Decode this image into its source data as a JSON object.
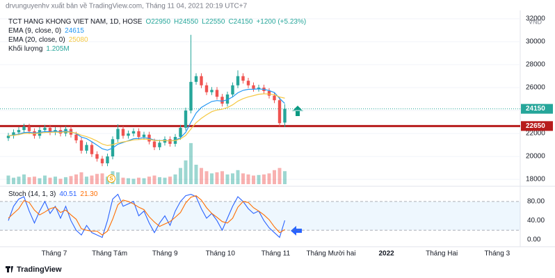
{
  "chart_data": [
    {
      "type": "candlestick",
      "header": "drvunguyenhv xuất bản về TradingView.com, Tháng 11 04, 2021 20:19 UTC+7",
      "title": "TCT HANG KHONG VIET NAM, 1D, HOSE",
      "ohlc_legend": [
        "O22950",
        "H24550",
        "L22550",
        "C24150",
        "+1200 (+5.23%)"
      ],
      "open": [
        21600,
        21800,
        22100,
        22300,
        22600,
        22200,
        21800,
        22300,
        22500,
        22100,
        22300,
        22000,
        22400,
        21900,
        21400,
        20500,
        21000,
        20200,
        19800,
        19400,
        20000,
        21500,
        22400,
        21800,
        22000,
        22200,
        21700,
        21900,
        21300,
        20800,
        21200,
        21500,
        21100,
        21700,
        22500,
        24000,
        26500,
        27000,
        26200,
        25600,
        25800,
        25200,
        24600,
        25400,
        26200,
        27000,
        26600,
        26200,
        25900,
        26000,
        25700,
        25300,
        24900,
        22950
      ],
      "high": [
        22050,
        22350,
        22550,
        22850,
        22850,
        22450,
        22550,
        22750,
        22750,
        22550,
        22550,
        22650,
        22650,
        22150,
        21650,
        21250,
        21250,
        20450,
        20050,
        20250,
        21750,
        22800,
        22650,
        22250,
        22450,
        22450,
        22150,
        22150,
        21550,
        21450,
        21750,
        21750,
        21950,
        22750,
        24250,
        30600,
        27250,
        27250,
        26450,
        26050,
        26050,
        25450,
        25650,
        26450,
        27500,
        27250,
        26850,
        26450,
        26250,
        26250,
        25950,
        25550,
        25150,
        24550
      ],
      "low": [
        21350,
        21550,
        21850,
        22050,
        21950,
        21550,
        21550,
        22050,
        21850,
        21850,
        21750,
        21750,
        21650,
        21150,
        20250,
        20250,
        19950,
        19550,
        19150,
        19150,
        19750,
        21250,
        21550,
        21550,
        21750,
        21450,
        21450,
        21050,
        20550,
        20550,
        20950,
        20850,
        20850,
        21450,
        22250,
        23750,
        26250,
        25950,
        25350,
        25350,
        24950,
        24350,
        24350,
        25150,
        25950,
        26350,
        25950,
        25650,
        25650,
        25450,
        25050,
        24650,
        22600,
        22550
      ],
      "close": [
        21800,
        22100,
        22300,
        22600,
        22200,
        21800,
        22300,
        22500,
        22100,
        22300,
        22000,
        22400,
        21900,
        21400,
        20500,
        21000,
        20200,
        19800,
        19400,
        20000,
        21500,
        22400,
        21800,
        22000,
        22200,
        21700,
        21900,
        21300,
        20800,
        21200,
        21500,
        21100,
        21700,
        22500,
        24000,
        26500,
        27000,
        26200,
        25600,
        25800,
        25200,
        24600,
        25400,
        26200,
        27000,
        26600,
        26200,
        25900,
        26000,
        25700,
        25300,
        24900,
        22900,
        24150
      ],
      "up_color": "#26a69a",
      "down_color": "#ef5350",
      "series": [
        {
          "name": "EMA (9, close, 0)",
          "color": "#2196f3",
          "values": [
            21800,
            21860,
            21950,
            22080,
            22100,
            22040,
            22090,
            22170,
            22160,
            22190,
            22150,
            22200,
            22140,
            21990,
            21690,
            21550,
            21280,
            20980,
            20670,
            20540,
            20730,
            21060,
            21210,
            21370,
            21540,
            21570,
            21640,
            21570,
            21420,
            21380,
            21400,
            21340,
            21410,
            21630,
            22100,
            22980,
            23780,
            24270,
            24540,
            24790,
            24870,
            24820,
            24940,
            25190,
            25550,
            25760,
            25850,
            25860,
            25890,
            25850,
            25740,
            25570,
            25060,
            24615
          ]
        },
        {
          "name": "EMA (20, close, 0)",
          "color": "#f5c842",
          "values": [
            21800,
            21840,
            21900,
            22000,
            22020,
            21990,
            22030,
            22090,
            22090,
            22120,
            22100,
            22140,
            22110,
            22030,
            21850,
            21730,
            21550,
            21340,
            21080,
            20950,
            21020,
            21180,
            21260,
            21340,
            21440,
            21470,
            21510,
            21480,
            21390,
            21370,
            21380,
            21350,
            21390,
            21530,
            21830,
            22390,
            22940,
            23320,
            23630,
            23900,
            24050,
            24120,
            24260,
            24500,
            24820,
            25040,
            25190,
            25300,
            25420,
            25460,
            25440,
            25380,
            25180,
            25080
          ]
        }
      ],
      "volume": {
        "name": "Khối lượng",
        "value_label": "1.205M",
        "ylim": [
          0,
          4500000
        ],
        "values": [
          800000,
          600000,
          700000,
          900000,
          650000,
          700000,
          550000,
          800000,
          600000,
          700000,
          500000,
          650000,
          750000,
          900000,
          1100000,
          700000,
          800000,
          950000,
          1000000,
          700000,
          1200000,
          1100000,
          600000,
          550000,
          500000,
          600000,
          550000,
          700000,
          800000,
          650000,
          600000,
          700000,
          900000,
          1500000,
          2200000,
          3800000,
          1800000,
          1500000,
          1200000,
          1000000,
          1100000,
          1200000,
          900000,
          1000000,
          1300000,
          1000000,
          900000,
          800000,
          850000,
          900000,
          1000000,
          1300000,
          1500000,
          1205000
        ]
      },
      "ylim": [
        17580,
        32730
      ],
      "yticks": [
        18000,
        20000,
        22000,
        24000,
        26000,
        28000,
        30000,
        32000
      ],
      "y_unit": "VND",
      "grid": true,
      "last_price": 24150,
      "level": 22650,
      "level_color": "#b71c1c",
      "event_marker": "S",
      "x_labels": [
        "Tháng 7",
        "Tháng Tám",
        "Tháng 9",
        "Tháng 10",
        "Tháng 11",
        "Tháng Mười hai",
        "2022",
        "Tháng Hai",
        "Tháng 3"
      ],
      "footer": "TradingView"
    },
    {
      "type": "line",
      "title": "Stoch (14, 1, 3)",
      "series": [
        {
          "color": "#2962ff",
          "values": [
            40,
            70,
            85,
            90,
            60,
            35,
            60,
            80,
            55,
            70,
            45,
            70,
            40,
            20,
            10,
            30,
            15,
            10,
            5,
            40,
            85,
            95,
            70,
            75,
            80,
            50,
            60,
            35,
            15,
            35,
            50,
            30,
            60,
            80,
            92,
            95,
            90,
            65,
            45,
            55,
            40,
            20,
            45,
            70,
            90,
            80,
            65,
            55,
            60,
            40,
            25,
            15,
            5,
            40.51
          ]
        },
        {
          "color": "#ff6d00",
          "value_label": "21.30",
          "values": [
            45,
            55,
            65,
            82,
            78,
            62,
            52,
            58,
            65,
            68,
            57,
            62,
            52,
            43,
            23,
            20,
            18,
            18,
            10,
            18,
            43,
            73,
            83,
            80,
            75,
            68,
            63,
            48,
            37,
            28,
            33,
            38,
            47,
            57,
            77,
            89,
            92,
            83,
            67,
            55,
            47,
            38,
            35,
            45,
            68,
            80,
            78,
            67,
            60,
            52,
            42,
            27,
            15,
            21.3
          ]
        }
      ],
      "ylim": [
        -14.5,
        106
      ],
      "yticks": [
        {
          "value": 80,
          "label": "80.00"
        },
        {
          "value": 40,
          "label": "40.00"
        },
        {
          "value": 0,
          "label": "0.00"
        }
      ],
      "band": [
        20,
        80
      ]
    }
  ]
}
